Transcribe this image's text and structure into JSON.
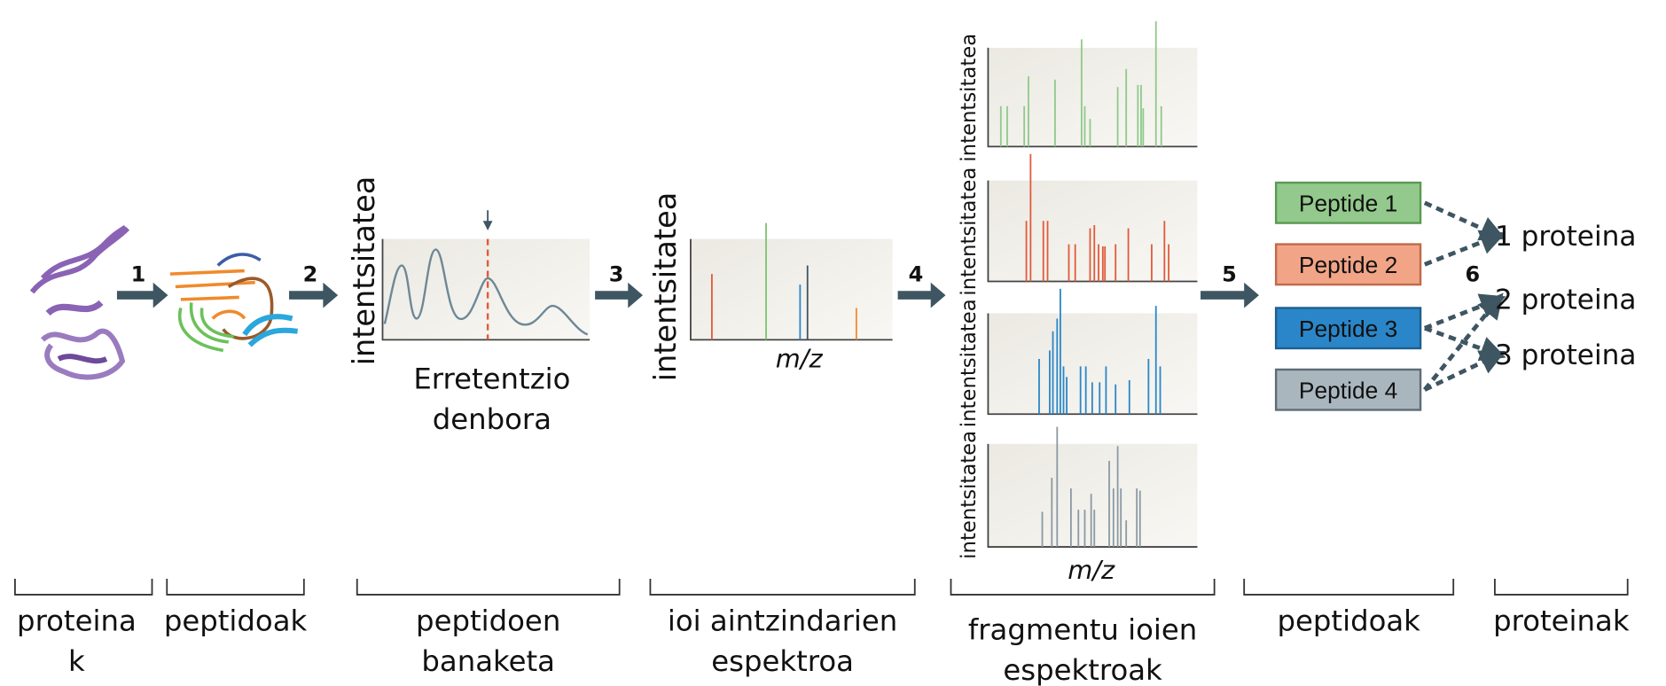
{
  "steps": [
    "1",
    "2",
    "3",
    "4",
    "5",
    "6"
  ],
  "axis_labels": {
    "intensity": "intentsitatea",
    "retention_time": [
      "Erretentzio",
      "denbora"
    ],
    "mz": "m/z"
  },
  "peptides": [
    "Peptide 1",
    "Peptide 2",
    "Peptide 3",
    "Peptide 4"
  ],
  "proteins": [
    "1 proteina",
    "2 proteina",
    "3 proteina"
  ],
  "stages": [
    [
      "proteina",
      "k"
    ],
    [
      "peptidoak"
    ],
    [
      "peptidoen",
      "banaketa"
    ],
    [
      "ioi aintzindarien",
      "espektroa"
    ],
    [
      "fragmentu ioien",
      "espektroak"
    ],
    [
      "peptidoak"
    ],
    [
      "proteinak"
    ]
  ]
}
